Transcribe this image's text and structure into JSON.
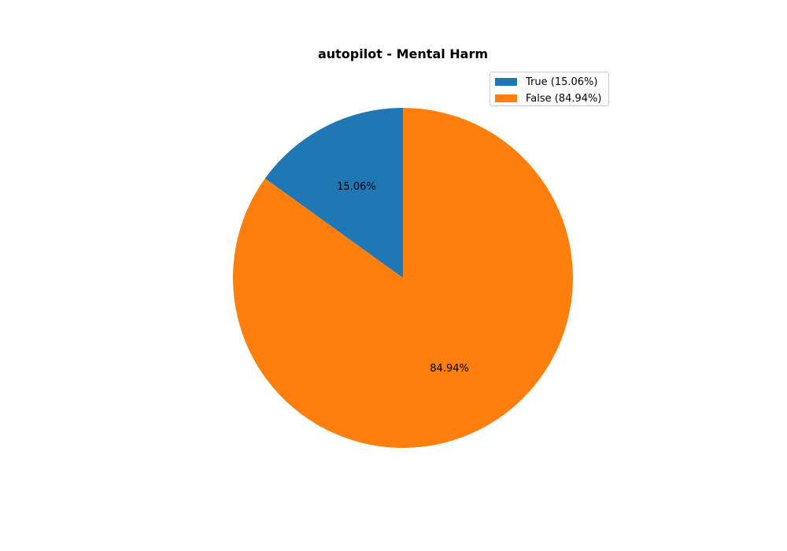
{
  "chart_data": {
    "type": "pie",
    "title": "autopilot - Mental Harm",
    "slices": [
      {
        "label": "True",
        "value": 15.06,
        "color": "#1f77b4",
        "pct_label": "15.06%",
        "legend": "True (15.06%)"
      },
      {
        "label": "False",
        "value": 84.94,
        "color": "#ff7f0e",
        "pct_label": "84.94%",
        "legend": "False (84.94%)"
      }
    ],
    "start_angle_deg": 90,
    "direction": "counterclockwise",
    "legend_position": "upper-right"
  }
}
